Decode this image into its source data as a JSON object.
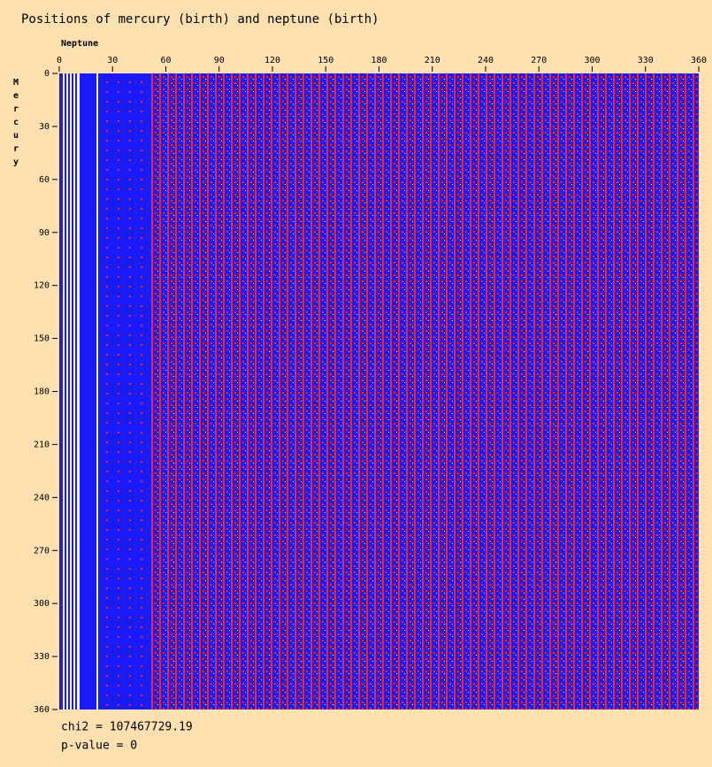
{
  "chart_data": {
    "type": "heatmap",
    "title": "Positions of mercury (birth) and neptune (birth)",
    "x_label": "Neptune",
    "y_label": "Mercury",
    "xlim": [
      0,
      360
    ],
    "xticks": [
      0,
      30,
      60,
      90,
      120,
      150,
      180,
      210,
      240,
      270,
      300,
      330,
      360
    ],
    "ylim": [
      0,
      360
    ],
    "yticks": [
      0,
      30,
      60,
      90,
      120,
      150,
      180,
      210,
      240,
      270,
      300,
      330,
      360
    ],
    "annotations": [
      "chi2 = 107467729.19",
      "p-value = 0"
    ]
  }
}
